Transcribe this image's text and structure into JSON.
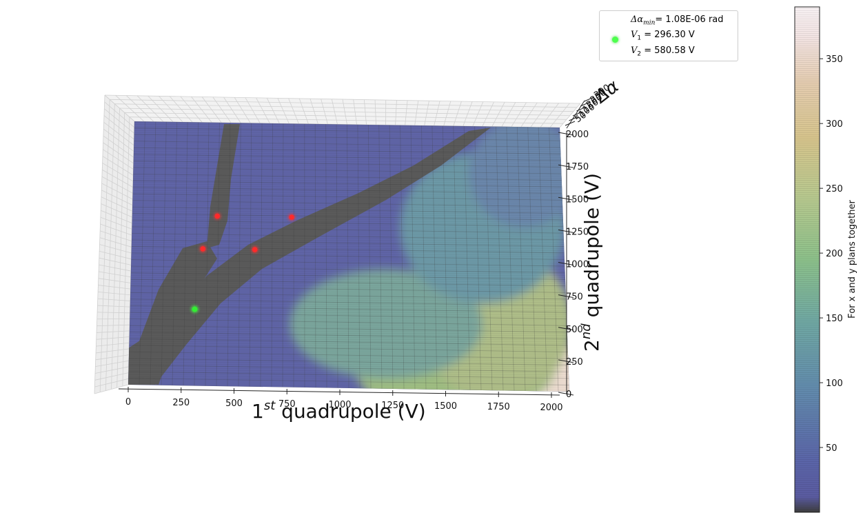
{
  "chart_data": {
    "type": "surface3d",
    "title": "",
    "xlabel": "1^{st} quadrupole (V)",
    "xlabel_parts": {
      "pre": "1",
      "sup": "st",
      "post": " quadrupole (V)"
    },
    "ylabel": "2^{nd} quadrupole (V)",
    "ylabel_parts": {
      "pre": "2",
      "sup": "nd",
      "post": " quadrupole (V)"
    },
    "zlabel": "Δα",
    "xlim": [
      0,
      2000
    ],
    "ylim": [
      0,
      2000
    ],
    "x_ticks": [
      "0",
      "250",
      "500",
      "750",
      "1000",
      "1250",
      "1500",
      "1750",
      "2000"
    ],
    "y_ticks": [
      "0",
      "250",
      "500",
      "750",
      "1000",
      "1250",
      "1500",
      "1750",
      "2000"
    ],
    "z_ticks": [
      "50",
      "100",
      "150",
      "200",
      "250",
      "300"
    ],
    "grid": true,
    "colormap": "gist_earth_r",
    "colorbar": {
      "label": "For x and y plans together",
      "ticks": [
        50,
        100,
        150,
        200,
        250,
        300,
        350
      ],
      "range": [
        0,
        390
      ]
    },
    "red_points": [
      {
        "x": 330,
        "y": 1040
      },
      {
        "x": 570,
        "y": 1040
      },
      {
        "x": 395,
        "y": 1290
      },
      {
        "x": 740,
        "y": 1290
      }
    ],
    "minimum_point": {
      "x": 296.3,
      "y": 580.58
    },
    "legend": {
      "position": "top-right",
      "line1_symbol": "Δα",
      "line1_sub": "min",
      "line1_value": "= 1.08E-06 rad",
      "line2_symbol": "V",
      "line2_sub": "1",
      "line2_value": " = 296.30 V",
      "line3_symbol": "V",
      "line3_sub": "2",
      "line3_value": " = 580.58 V"
    }
  }
}
